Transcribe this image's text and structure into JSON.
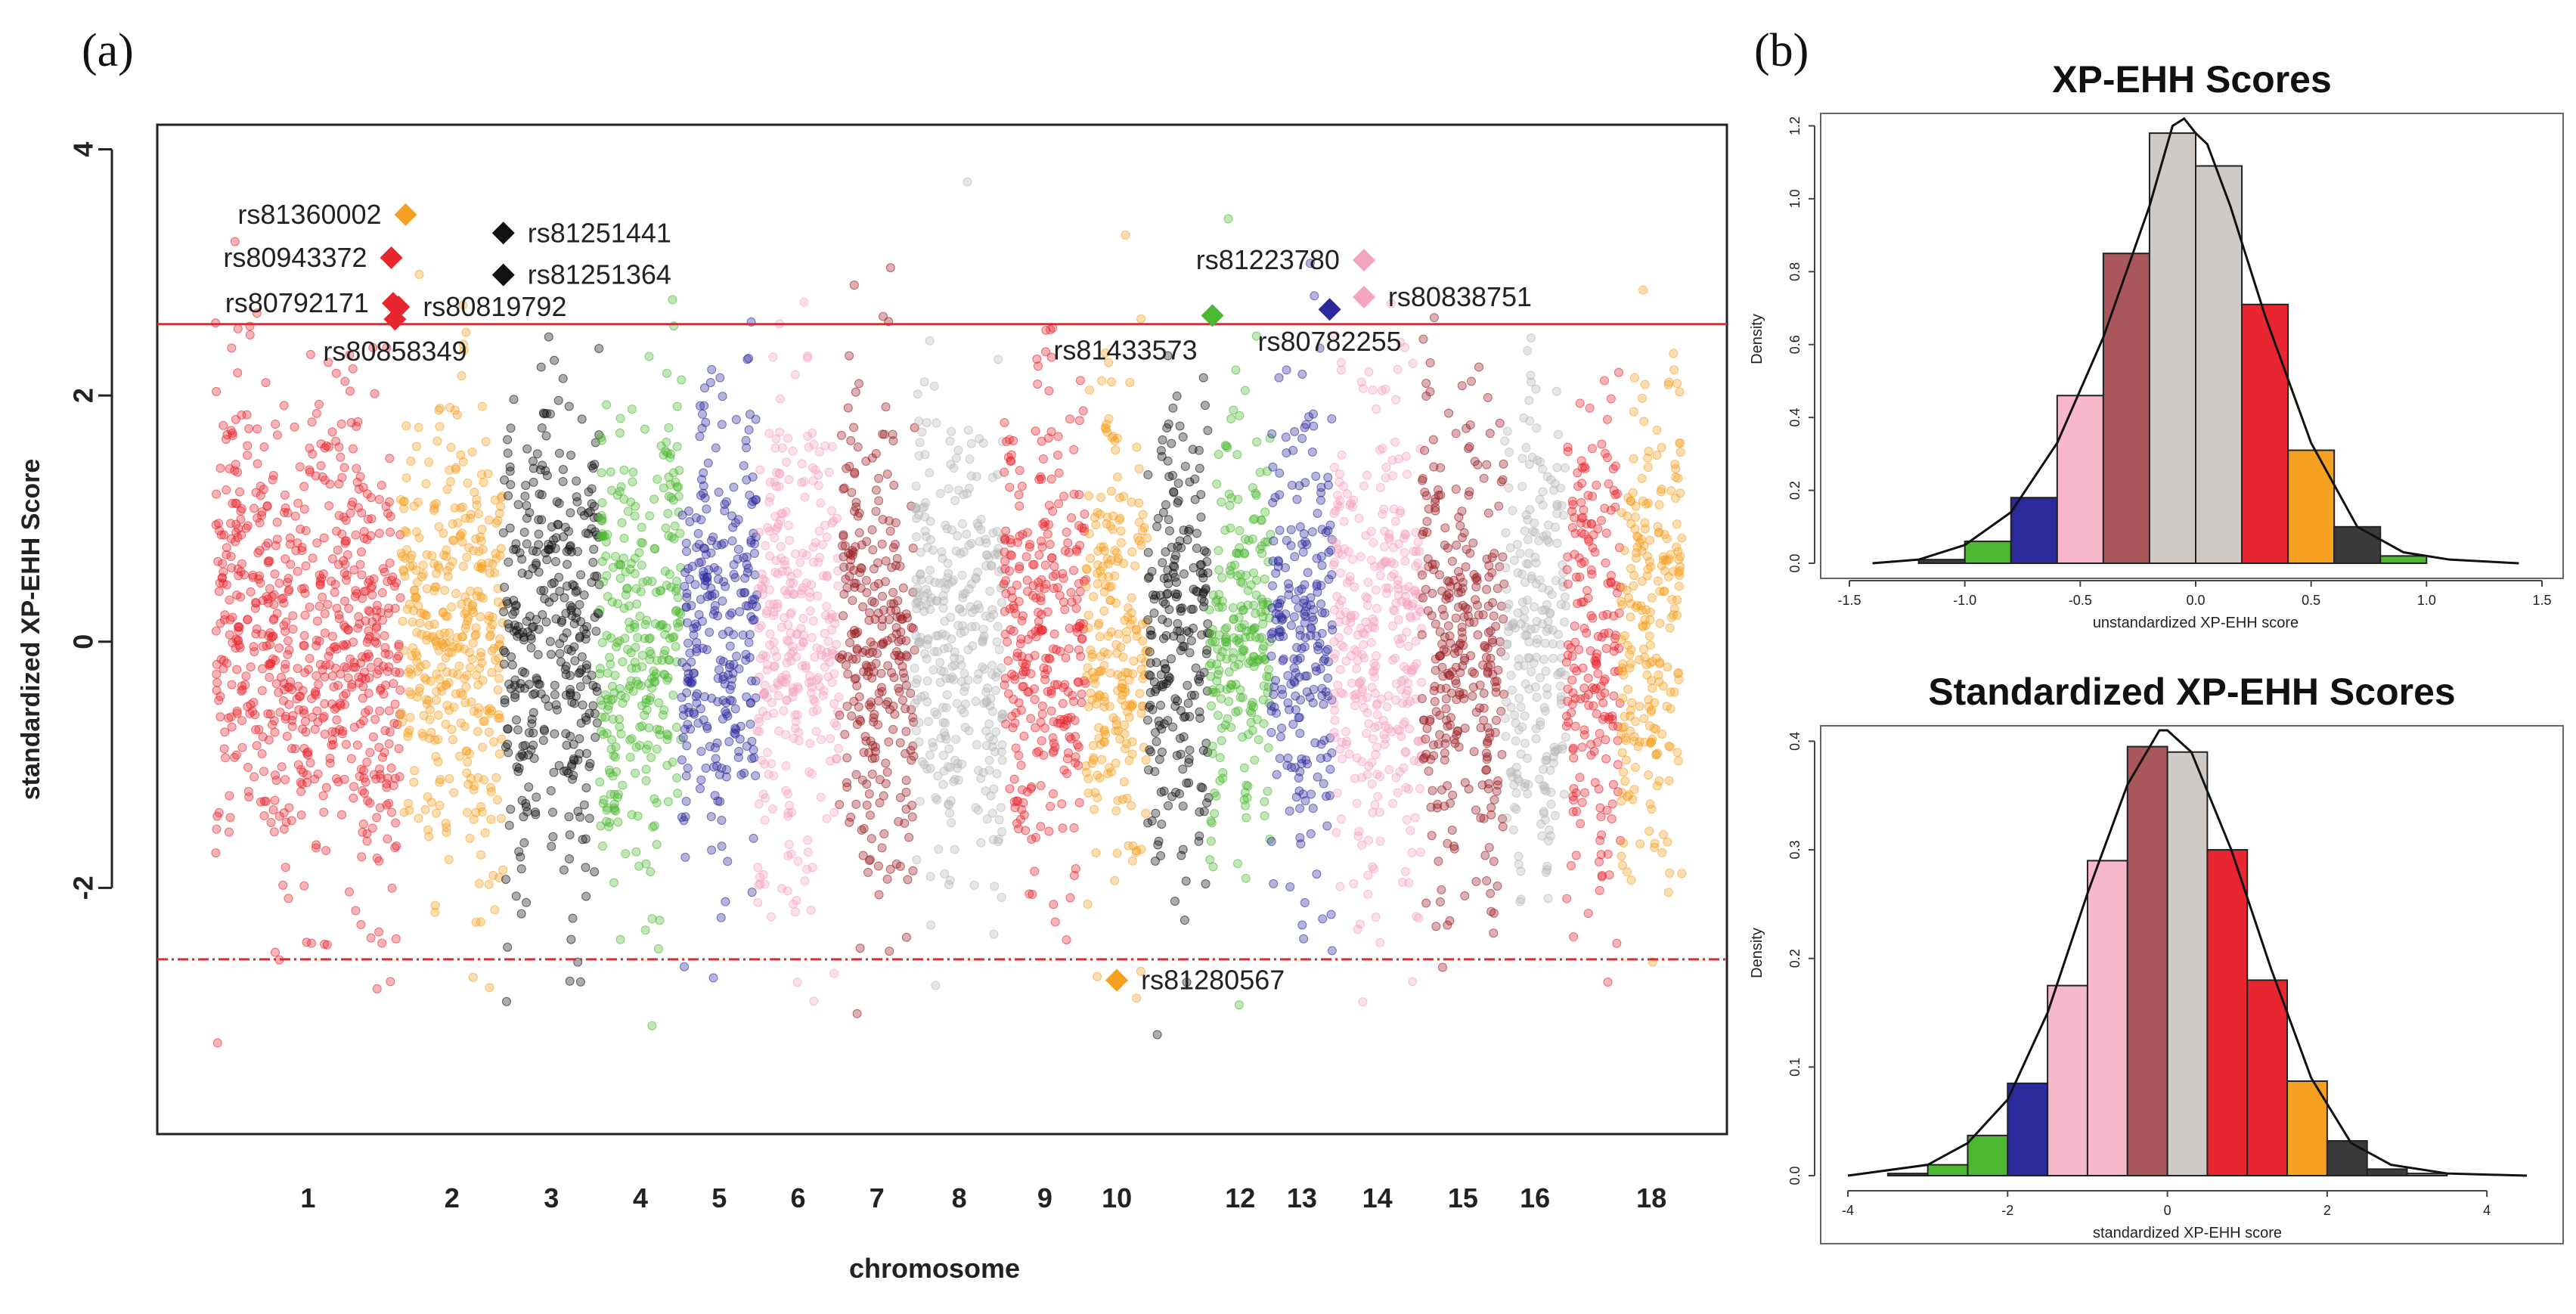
{
  "panel_labels": {
    "a": "(a)",
    "b": "(b)"
  },
  "colors": {
    "chromosomes": [
      "#e8262f",
      "#f5a021",
      "#111111",
      "#4cb832",
      "#2b2a9c",
      "#f4a3c0",
      "#9b1d22",
      "#b8b8b8"
    ],
    "threshold": "#e8262f",
    "hist": [
      "#3a3a3a",
      "#4cb832",
      "#2b2a9c",
      "#f7b8cc",
      "#a9575b",
      "#cfcac6",
      "#e8262f",
      "#f5a021",
      "#3a3a3a",
      "#4cb832"
    ]
  },
  "chart_data": [
    {
      "type": "scatter",
      "name": "manhattan",
      "xlabel": "chromosome",
      "ylabel": "standardized XP-EHH Score",
      "ylim": [
        -4.0,
        4.2
      ],
      "yticks": [
        4,
        2,
        0,
        -2
      ],
      "ytick_labels": [
        "4",
        "2",
        "0",
        "-2"
      ],
      "chromosomes": [
        "1",
        "2",
        "3",
        "4",
        "5",
        "6",
        "7",
        "8",
        "9",
        "10",
        "11",
        "12",
        "13",
        "14",
        "15",
        "16",
        "17",
        "18"
      ],
      "chromosome_labels": [
        "1",
        "2",
        "3",
        "4",
        "5",
        "6",
        "7",
        "8",
        "9",
        "10",
        "",
        "12",
        "13",
        "14",
        "15",
        "16",
        "",
        "18"
      ],
      "chromosome_widths": [
        2.7,
        1.5,
        1.4,
        1.2,
        1.1,
        1.2,
        1.1,
        1.3,
        1.2,
        0.9,
        0.9,
        0.9,
        0.9,
        1.3,
        1.2,
        0.9,
        0.8,
        0.9
      ],
      "thresholds": [
        2.58,
        -2.58
      ],
      "highlighted_snps": [
        {
          "label": "rs81360002",
          "chr": 2,
          "pos": 0.05,
          "y": 3.47,
          "color": "#f5a021",
          "label_side": "left"
        },
        {
          "label": "rs80943372",
          "chr": 1,
          "pos": 0.95,
          "y": 3.12,
          "color": "#e8262f",
          "label_side": "left"
        },
        {
          "label": "rs80792171",
          "chr": 1,
          "pos": 0.96,
          "y": 2.75,
          "color": "#e8262f",
          "label_side": "left"
        },
        {
          "label": "rs80858349",
          "chr": 1,
          "pos": 0.97,
          "y": 2.62,
          "color": "#e8262f",
          "label_side": "below"
        },
        {
          "label": "rs80819792",
          "chr": 1,
          "pos": 0.99,
          "y": 2.72,
          "color": "#e8262f",
          "label_side": "right"
        },
        {
          "label": "rs81251441",
          "chr": 3,
          "pos": 0.0,
          "y": 3.32,
          "color": "#111111",
          "label_side": "right"
        },
        {
          "label": "rs81251364",
          "chr": 3,
          "pos": 0.0,
          "y": 2.98,
          "color": "#111111",
          "label_side": "right"
        },
        {
          "label": "rs81433573",
          "chr": 12,
          "pos": 0.05,
          "y": 2.65,
          "color": "#4cb832",
          "label_side": "left-below"
        },
        {
          "label": "rs81223780",
          "chr": 14,
          "pos": 0.35,
          "y": 3.1,
          "color": "#f4a3c0",
          "label_side": "left"
        },
        {
          "label": "rs80838751",
          "chr": 14,
          "pos": 0.35,
          "y": 2.8,
          "color": "#f4a3c0",
          "label_side": "right"
        },
        {
          "label": "rs80782255",
          "chr": 13,
          "pos": 0.95,
          "y": 2.7,
          "color": "#2b2a9c",
          "label_side": "below"
        },
        {
          "label": "rs81280567",
          "chr": 10,
          "pos": 0.5,
          "y": -2.75,
          "color": "#f5a021",
          "label_side": "right"
        }
      ]
    },
    {
      "type": "bar",
      "name": "xp-ehh-unstandardized",
      "title": "XP-EHH Scores",
      "xlabel": "unstandardized XP-EHH score",
      "ylabel": "Density",
      "xlim": [
        -1.5,
        1.5
      ],
      "ylim": [
        0,
        1.23
      ],
      "xticks": [
        -1.5,
        -1.0,
        -0.5,
        0.0,
        0.5,
        1.0,
        1.5
      ],
      "xtick_labels": [
        "-1.5",
        "-1.0",
        "-0.5",
        "0.0",
        "0.5",
        "1.0",
        "1.5"
      ],
      "yticks": [
        0.0,
        0.2,
        0.4,
        0.6,
        0.8,
        1.0,
        1.2
      ],
      "ytick_labels": [
        "0.0",
        "0.2",
        "0.4",
        "0.6",
        "0.8",
        "1.0",
        "1.2"
      ],
      "bin_edges": [
        -1.2,
        -1.0,
        -0.8,
        -0.6,
        -0.4,
        -0.2,
        0.0,
        0.2,
        0.4,
        0.6,
        0.8,
        1.0
      ],
      "values": [
        0.01,
        0.06,
        0.18,
        0.46,
        0.85,
        1.18,
        1.09,
        0.71,
        0.31,
        0.1,
        0.02
      ],
      "density_curve": [
        [
          -1.4,
          0.0
        ],
        [
          -1.2,
          0.01
        ],
        [
          -1.0,
          0.05
        ],
        [
          -0.8,
          0.14
        ],
        [
          -0.6,
          0.33
        ],
        [
          -0.4,
          0.62
        ],
        [
          -0.2,
          0.98
        ],
        [
          -0.1,
          1.2
        ],
        [
          -0.05,
          1.22
        ],
        [
          0.0,
          1.18
        ],
        [
          0.05,
          1.15
        ],
        [
          0.15,
          0.98
        ],
        [
          0.3,
          0.68
        ],
        [
          0.5,
          0.33
        ],
        [
          0.7,
          0.1
        ],
        [
          0.9,
          0.03
        ],
        [
          1.1,
          0.01
        ],
        [
          1.4,
          0.0
        ]
      ]
    },
    {
      "type": "bar",
      "name": "xp-ehh-standardized",
      "title": "Standardized XP-EHH Scores",
      "xlabel": "standardized XP-EHH score",
      "ylabel": "Density",
      "xlim": [
        -4,
        4.5
      ],
      "ylim": [
        0,
        0.41
      ],
      "xticks": [
        -4,
        -2,
        0,
        2,
        4
      ],
      "xtick_labels": [
        "-4",
        "-2",
        "0",
        "2",
        "4"
      ],
      "yticks": [
        0.0,
        0.1,
        0.2,
        0.3,
        0.4
      ],
      "ytick_labels": [
        "0.0",
        "0.1",
        "0.2",
        "0.3",
        "0.4"
      ],
      "bin_edges": [
        -3.5,
        -3.0,
        -2.5,
        -2.0,
        -1.5,
        -1.0,
        -0.5,
        0.0,
        0.5,
        1.0,
        1.5,
        2.0,
        2.5,
        3.0,
        3.5
      ],
      "values": [
        0.002,
        0.01,
        0.037,
        0.085,
        0.175,
        0.29,
        0.395,
        0.39,
        0.3,
        0.18,
        0.087,
        0.032,
        0.006,
        0.002
      ],
      "density_curve": [
        [
          -4.0,
          0.0
        ],
        [
          -3.0,
          0.01
        ],
        [
          -2.5,
          0.03
        ],
        [
          -2.0,
          0.07
        ],
        [
          -1.5,
          0.15
        ],
        [
          -1.0,
          0.26
        ],
        [
          -0.5,
          0.36
        ],
        [
          -0.1,
          0.41
        ],
        [
          0.0,
          0.41
        ],
        [
          0.3,
          0.39
        ],
        [
          0.8,
          0.3
        ],
        [
          1.3,
          0.19
        ],
        [
          1.8,
          0.09
        ],
        [
          2.3,
          0.03
        ],
        [
          2.8,
          0.01
        ],
        [
          3.5,
          0.002
        ],
        [
          4.5,
          0.0
        ]
      ]
    }
  ]
}
